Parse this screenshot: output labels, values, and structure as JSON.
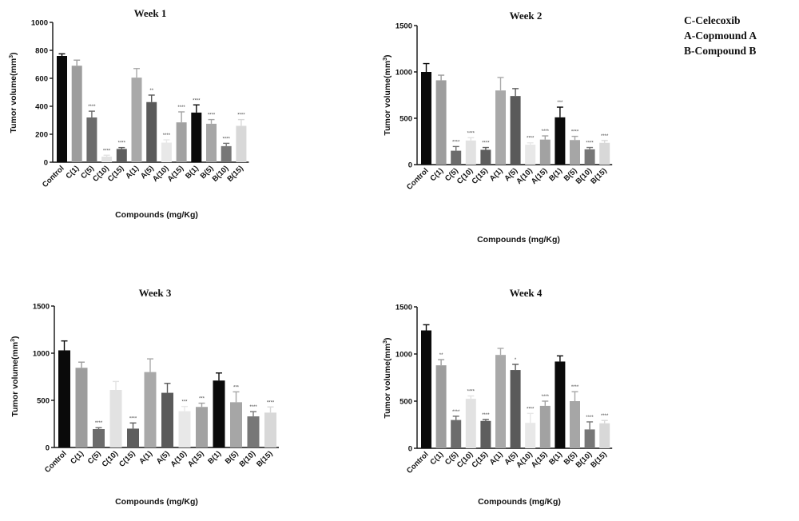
{
  "legend": [
    "C-Celecoxib",
    "A-Copmound A",
    "B-Compound B"
  ],
  "chart_data": [
    {
      "type": "bar",
      "title": "Week 1",
      "xlabel": "Compounds (mg/Kg)",
      "ylabel": "Tumor volume(mm",
      "ylabel_sup": "3",
      "ylabel_close": ")",
      "ylim": [
        0,
        1000
      ],
      "yticks": [
        0,
        200,
        400,
        600,
        800,
        1000
      ],
      "categories": [
        "Control",
        "C(1)",
        "C(5)",
        "C(10)",
        "C(15)",
        "A(1)",
        "A(5)",
        "A(10)",
        "A(15)",
        "B(1)",
        "B(5)",
        "B(10)",
        "B(15)"
      ],
      "values": [
        760,
        690,
        320,
        40,
        95,
        605,
        430,
        140,
        285,
        355,
        275,
        115,
        260
      ],
      "errors": [
        15,
        40,
        45,
        10,
        10,
        65,
        50,
        20,
        75,
        55,
        30,
        20,
        45
      ],
      "significance": [
        "",
        "",
        "****",
        "****",
        "****",
        "",
        "**",
        "****",
        "****",
        "****",
        "****",
        "****",
        "****"
      ],
      "colors": [
        "#0a0a0a",
        "#9d9d9d",
        "#6c6c6c",
        "#e2e2e2",
        "#5e5e5e",
        "#a9a9a9",
        "#5a5a5a",
        "#e8e8e8",
        "#a2a2a2",
        "#0a0a0a",
        "#a6a6a6",
        "#777777",
        "#d8d8d8"
      ]
    },
    {
      "type": "bar",
      "title": "Week 2",
      "xlabel": "Compounds (mg/Kg)",
      "ylabel": "Tumor volume(mm",
      "ylabel_sup": "3",
      "ylabel_close": ")",
      "ylim": [
        0,
        1500
      ],
      "yticks": [
        0,
        500,
        1000,
        1500
      ],
      "categories": [
        "Control",
        "C(1)",
        "C(5)",
        "C(10)",
        "C(15)",
        "A(1)",
        "A(5)",
        "A(10)",
        "A(15)",
        "B(1)",
        "B(5)",
        "B(10)",
        "B(15)"
      ],
      "values": [
        1000,
        910,
        150,
        260,
        160,
        800,
        740,
        215,
        270,
        510,
        265,
        165,
        235
      ],
      "errors": [
        90,
        55,
        45,
        30,
        25,
        140,
        80,
        20,
        40,
        110,
        40,
        20,
        25
      ],
      "significance": [
        "",
        "",
        "****",
        "****",
        "****",
        "",
        "",
        "****",
        "****",
        "***",
        "****",
        "****",
        "****"
      ],
      "colors": [
        "#0a0a0a",
        "#9d9d9d",
        "#6c6c6c",
        "#e2e2e2",
        "#5e5e5e",
        "#a9a9a9",
        "#5a5a5a",
        "#e8e8e8",
        "#a2a2a2",
        "#0a0a0a",
        "#a6a6a6",
        "#777777",
        "#d8d8d8"
      ]
    },
    {
      "type": "bar",
      "title": "Week 3",
      "xlabel": "Compounds (mg/Kg)",
      "ylabel": "Tumor volume(mm",
      "ylabel_sup": "3",
      "ylabel_close": ")",
      "ylim": [
        0,
        1500
      ],
      "yticks": [
        0,
        500,
        1000,
        1500
      ],
      "categories": [
        "Control",
        "C(1)",
        "C(5)",
        "C(10)",
        "C(15)",
        "A(1)",
        "A(5)",
        "A(10)",
        "A(15)",
        "B(1)",
        "B(5)",
        "B(10)",
        "B(15)"
      ],
      "values": [
        1030,
        845,
        195,
        610,
        200,
        800,
        580,
        385,
        430,
        710,
        480,
        330,
        370
      ],
      "errors": [
        100,
        60,
        15,
        90,
        60,
        140,
        100,
        50,
        40,
        80,
        110,
        50,
        60
      ],
      "significance": [
        "",
        "",
        "****",
        "",
        "****",
        "",
        "",
        "***",
        "***",
        "",
        "***",
        "****",
        "****"
      ],
      "colors": [
        "#0a0a0a",
        "#9d9d9d",
        "#6c6c6c",
        "#e2e2e2",
        "#5e5e5e",
        "#a9a9a9",
        "#5a5a5a",
        "#e8e8e8",
        "#a2a2a2",
        "#0a0a0a",
        "#a6a6a6",
        "#777777",
        "#d8d8d8"
      ]
    },
    {
      "type": "bar",
      "title": "Week 4",
      "xlabel": "Compounds (mg/Kg)",
      "ylabel": "Tumor volume(mm",
      "ylabel_sup": "3",
      "ylabel_close": ")",
      "ylim": [
        0,
        1500
      ],
      "yticks": [
        0,
        500,
        1000,
        1500
      ],
      "categories": [
        "Control",
        "C(1)",
        "C(5)",
        "C(10)",
        "C(15)",
        "A(1)",
        "A(5)",
        "A(10)",
        "A(15)",
        "B(1)",
        "B(5)",
        "B(10)",
        "B(15)"
      ],
      "values": [
        1250,
        880,
        300,
        525,
        290,
        990,
        830,
        270,
        450,
        920,
        500,
        200,
        265
      ],
      "errors": [
        60,
        60,
        40,
        30,
        15,
        70,
        60,
        100,
        50,
        60,
        100,
        80,
        30
      ],
      "significance": [
        "",
        "**",
        "****",
        "****",
        "****",
        "",
        "*",
        "****",
        "****",
        "",
        "****",
        "****",
        "****"
      ],
      "colors": [
        "#0a0a0a",
        "#9d9d9d",
        "#6c6c6c",
        "#e2e2e2",
        "#5e5e5e",
        "#a9a9a9",
        "#5a5a5a",
        "#e8e8e8",
        "#a2a2a2",
        "#0a0a0a",
        "#a6a6a6",
        "#777777",
        "#d8d8d8"
      ]
    }
  ]
}
